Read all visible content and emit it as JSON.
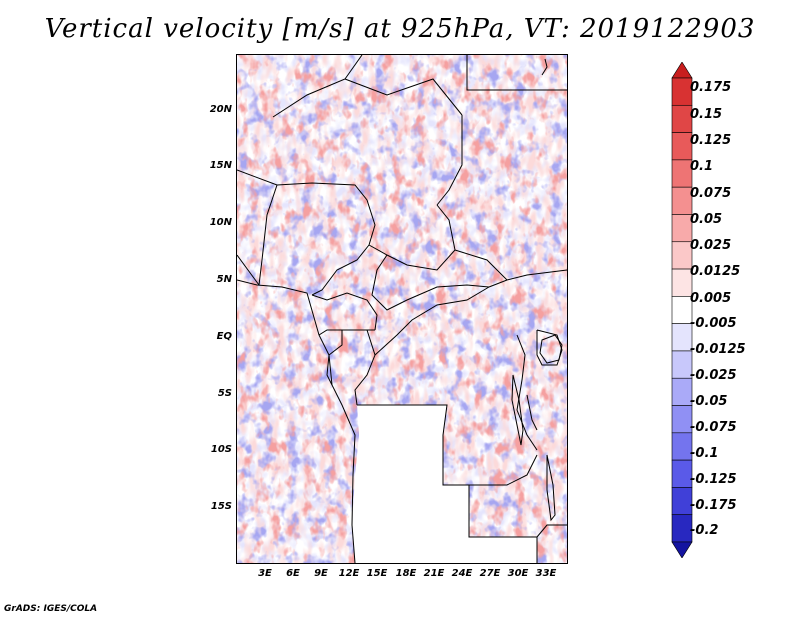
{
  "title": "Vertical velocity [m/s] at 925hPa, VT: 2019122903",
  "footer": "GrADS: IGES/COLA",
  "axes": {
    "lat_labels": [
      "20N",
      "15N",
      "10N",
      "5N",
      "EQ",
      "5S",
      "10S",
      "15S"
    ],
    "lon_labels": [
      "3E",
      "6E",
      "9E",
      "12E",
      "15E",
      "18E",
      "21E",
      "24E",
      "27E",
      "30E",
      "33E"
    ]
  },
  "colorbar": {
    "labels": [
      "0.175",
      "0.15",
      "0.125",
      "0.1",
      "0.075",
      "0.05",
      "0.025",
      "0.0125",
      "0.005",
      "-0.005",
      "-0.0125",
      "-0.025",
      "-0.05",
      "-0.075",
      "-0.1",
      "-0.125",
      "-0.175",
      "-0.2"
    ],
    "colors": [
      "#c81e1e",
      "#d83232",
      "#e04646",
      "#e85a5a",
      "#ee7474",
      "#f49090",
      "#f8aaaa",
      "#fbc8c8",
      "#fde4e4",
      "#ffffff",
      "#e4e4fd",
      "#c8c8fb",
      "#aaaaf8",
      "#9090f4",
      "#7474ee",
      "#5a5ae8",
      "#4040d8",
      "#2828c0",
      "#1414a0"
    ]
  },
  "colors": {
    "positive": "#e85a5a",
    "negative": "#6060e0",
    "border": "#000000"
  }
}
